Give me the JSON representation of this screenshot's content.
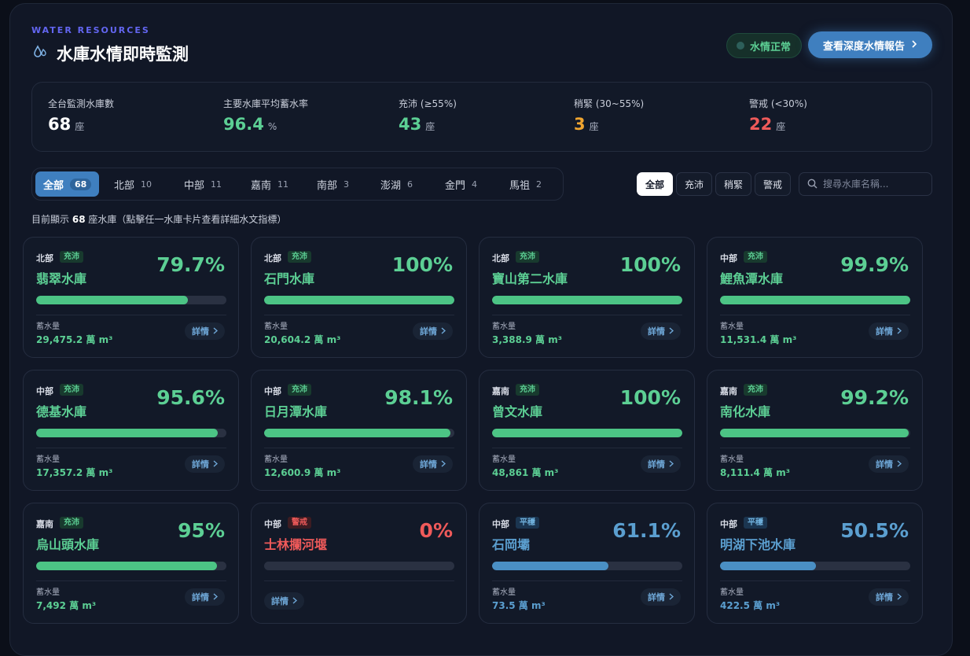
{
  "header": {
    "eyebrow": "WATER RESOURCES",
    "title": "水庫水情即時監測",
    "status": "水情正常",
    "report_button": "查看深度水情報告"
  },
  "stats": [
    {
      "label": "全台監測水庫數",
      "value": "68",
      "unit": "座",
      "color": "#ffffff"
    },
    {
      "label": "主要水庫平均蓄水率",
      "value": "96.4",
      "unit": "%",
      "color": "#5ccf94"
    },
    {
      "label": "充沛 (≥55%)",
      "value": "43",
      "unit": "座",
      "color": "#5ccf94"
    },
    {
      "label": "稍緊 (30~55%)",
      "value": "3",
      "unit": "座",
      "color": "#f0a530"
    },
    {
      "label": "警戒 (<30%)",
      "value": "22",
      "unit": "座",
      "color": "#ef5a5a"
    }
  ],
  "region_tabs": [
    {
      "label": "全部",
      "count": "68"
    },
    {
      "label": "北部",
      "count": "10"
    },
    {
      "label": "中部",
      "count": "11"
    },
    {
      "label": "嘉南",
      "count": "11"
    },
    {
      "label": "南部",
      "count": "3"
    },
    {
      "label": "澎湖",
      "count": "6"
    },
    {
      "label": "金門",
      "count": "4"
    },
    {
      "label": "馬祖",
      "count": "2"
    }
  ],
  "filters": [
    "全部",
    "充沛",
    "稍緊",
    "警戒"
  ],
  "search": {
    "placeholder": "搜尋水庫名稱..."
  },
  "count_line": {
    "prefix": "目前顯示",
    "count": "68",
    "suffix": "座水庫（點擊任一水庫卡片查看詳細水文指標）"
  },
  "storage_label": "蓄水量",
  "detail_label": "詳情",
  "cards": [
    {
      "region": "北部",
      "badge": "充沛",
      "name": "翡翠水庫",
      "pct": "79.7%",
      "level": 79.7,
      "storage": "29,475.2 萬 m³",
      "state": "ok"
    },
    {
      "region": "北部",
      "badge": "充沛",
      "name": "石門水庫",
      "pct": "100%",
      "level": 100,
      "storage": "20,604.2 萬 m³",
      "state": "ok"
    },
    {
      "region": "北部",
      "badge": "充沛",
      "name": "寶山第二水庫",
      "pct": "100%",
      "level": 100,
      "storage": "3,388.9 萬 m³",
      "state": "ok"
    },
    {
      "region": "中部",
      "badge": "充沛",
      "name": "鯉魚潭水庫",
      "pct": "99.9%",
      "level": 99.9,
      "storage": "11,531.4 萬 m³",
      "state": "ok"
    },
    {
      "region": "中部",
      "badge": "充沛",
      "name": "德基水庫",
      "pct": "95.6%",
      "level": 95.6,
      "storage": "17,357.2 萬 m³",
      "state": "ok"
    },
    {
      "region": "中部",
      "badge": "充沛",
      "name": "日月潭水庫",
      "pct": "98.1%",
      "level": 98.1,
      "storage": "12,600.9 萬 m³",
      "state": "ok"
    },
    {
      "region": "嘉南",
      "badge": "充沛",
      "name": "曾文水庫",
      "pct": "100%",
      "level": 100,
      "storage": "48,861 萬 m³",
      "state": "ok"
    },
    {
      "region": "嘉南",
      "badge": "充沛",
      "name": "南化水庫",
      "pct": "99.2%",
      "level": 99.2,
      "storage": "8,111.4 萬 m³",
      "state": "ok"
    },
    {
      "region": "嘉南",
      "badge": "充沛",
      "name": "烏山頭水庫",
      "pct": "95%",
      "level": 95,
      "storage": "7,492 萬 m³",
      "state": "ok"
    },
    {
      "region": "中部",
      "badge": "警戒",
      "name": "士林攔河堰",
      "pct": "0%",
      "level": 0,
      "storage": "",
      "state": "warn"
    },
    {
      "region": "中部",
      "badge": "平穩",
      "name": "石岡壩",
      "pct": "61.1%",
      "level": 61.1,
      "storage": "73.5 萬 m³",
      "state": "mid"
    },
    {
      "region": "中部",
      "badge": "平穩",
      "name": "明湖下池水庫",
      "pct": "50.5%",
      "level": 50.5,
      "storage": "422.5 萬 m³",
      "state": "mid"
    }
  ]
}
